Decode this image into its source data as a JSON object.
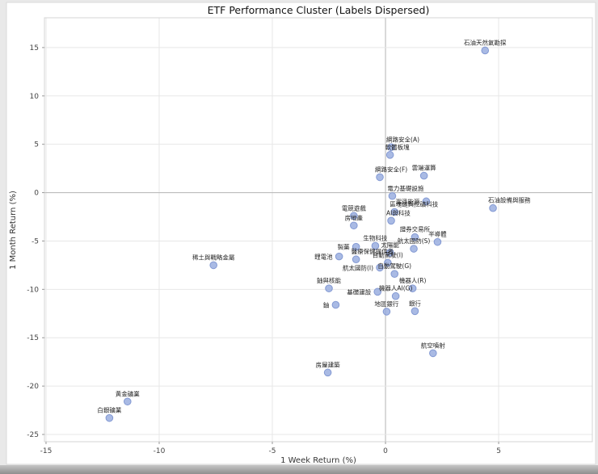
{
  "figure": {
    "title": "ETF Performance Cluster (Labels Dispersed)"
  },
  "chart_data": {
    "type": "scatter",
    "title": "ETF Performance Cluster (Labels Dispersed)",
    "xlabel": "1 Week Return (%)",
    "ylabel": "1 Month Return (%)",
    "xlim": [
      -15.07,
      9.14
    ],
    "ylim": [
      -25.75,
      18.08
    ],
    "xticks": [
      -15,
      -10,
      -5,
      0,
      5
    ],
    "yticks": [
      -25,
      -20,
      -15,
      -10,
      -5,
      0,
      5,
      10,
      15
    ],
    "grid": true,
    "zero_lines": true,
    "point_color": "#94a9dd",
    "point_edge_color": "#7b92cf",
    "grid_color": "#e7e7e7",
    "zero_line_color": "#b3b3b3",
    "frame_color": "#d4d4d4",
    "points": [
      {
        "label": "石油天然氣勘探",
        "x": 4.4,
        "y": 14.7,
        "label_pos": "above"
      },
      {
        "label": "網路安全(A)",
        "x": 0.25,
        "y": 4.7,
        "label_pos": "above-start"
      },
      {
        "label": "軟體板塊",
        "x": 0.2,
        "y": 3.9,
        "label_pos": "above-start"
      },
      {
        "label": "網路安全(F)",
        "x": -0.25,
        "y": 1.6,
        "label_pos": "above-start"
      },
      {
        "label": "雲端運算",
        "x": 1.7,
        "y": 1.75,
        "label_pos": "above"
      },
      {
        "label": "電力基礎設施",
        "x": 0.3,
        "y": -0.35,
        "label_pos": "above-start"
      },
      {
        "label": "潔淨能源",
        "x": 1.8,
        "y": -0.9,
        "label_pos": "left"
      },
      {
        "label": "石油設備與服務",
        "x": 4.75,
        "y": -1.6,
        "label_pos": "above-start"
      },
      {
        "label": "區塊鏈與挖礦科技",
        "x": 0.4,
        "y": -2.0,
        "label_pos": "above-start"
      },
      {
        "label": "AI與科技",
        "x": 0.25,
        "y": -2.9,
        "label_pos": "above-start"
      },
      {
        "label": "電競遊戲",
        "x": -1.4,
        "y": -2.4,
        "label_pos": "above"
      },
      {
        "label": "房地產",
        "x": -1.4,
        "y": -3.4,
        "label_pos": "above"
      },
      {
        "label": "證券交易所",
        "x": 1.3,
        "y": -4.6,
        "label_pos": "above"
      },
      {
        "label": "半導體",
        "x": 2.3,
        "y": -5.1,
        "label_pos": "above"
      },
      {
        "label": "製藥",
        "x": -1.3,
        "y": -5.6,
        "label_pos": "left"
      },
      {
        "label": "生物科技",
        "x": -0.45,
        "y": -5.5,
        "label_pos": "above"
      },
      {
        "label": "航太國防(S)",
        "x": 1.25,
        "y": -5.8,
        "label_pos": "above"
      },
      {
        "label": "鋰電池",
        "x": -2.05,
        "y": -6.6,
        "label_pos": "left"
      },
      {
        "label": "醫療保健提供者",
        "x": -1.3,
        "y": -6.9,
        "label_pos": "above-start"
      },
      {
        "label": "太陽能",
        "x": 0.2,
        "y": -6.2,
        "label_pos": "above"
      },
      {
        "label": "自動駕駛(I)",
        "x": 0.1,
        "y": -7.25,
        "label_pos": "above"
      },
      {
        "label": "航太國防(I)",
        "x": -0.25,
        "y": -7.75,
        "label_pos": "left"
      },
      {
        "label": "自動駕駛(G)",
        "x": 0.4,
        "y": -8.4,
        "label_pos": "above"
      },
      {
        "label": "稀土與戰略金屬",
        "x": -7.6,
        "y": -7.5,
        "label_pos": "above"
      },
      {
        "label": "鈾與核能",
        "x": -2.5,
        "y": -9.9,
        "label_pos": "above"
      },
      {
        "label": "基礎建設",
        "x": -0.35,
        "y": -10.25,
        "label_pos": "left"
      },
      {
        "label": "機器人(R)",
        "x": 1.2,
        "y": -9.9,
        "label_pos": "above"
      },
      {
        "label": "機器人AI(G)",
        "x": 0.45,
        "y": -10.7,
        "label_pos": "above"
      },
      {
        "label": "鈾",
        "x": -2.2,
        "y": -11.6,
        "label_pos": "left"
      },
      {
        "label": "地區銀行",
        "x": 0.05,
        "y": -12.3,
        "label_pos": "above"
      },
      {
        "label": "銀行",
        "x": 1.3,
        "y": -12.25,
        "label_pos": "above"
      },
      {
        "label": "航空噴射",
        "x": 2.1,
        "y": -16.6,
        "label_pos": "above"
      },
      {
        "label": "房屋建築",
        "x": -2.55,
        "y": -18.6,
        "label_pos": "above"
      },
      {
        "label": "黃金礦業",
        "x": -11.4,
        "y": -21.6,
        "label_pos": "above"
      },
      {
        "label": "白銀礦業",
        "x": -12.2,
        "y": -23.3,
        "label_pos": "above"
      }
    ]
  }
}
